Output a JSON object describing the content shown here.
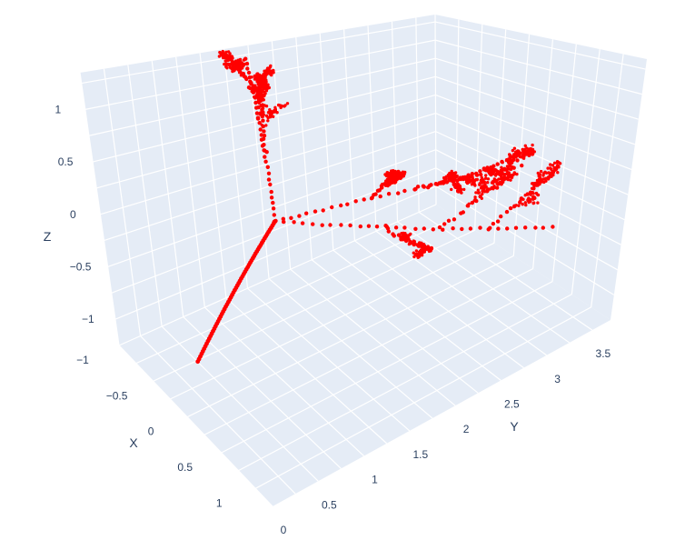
{
  "chart_data": {
    "type": "scatter3d",
    "title": "",
    "axes": {
      "x": {
        "label": "X",
        "range": [
          -1,
          1.25
        ],
        "ticks": [
          -1,
          -0.5,
          0,
          0.5,
          1
        ],
        "tick_labels": [
          "−1",
          "−0.5",
          "0",
          "0.5",
          "1"
        ]
      },
      "y": {
        "label": "Y",
        "range": [
          0,
          3.7
        ],
        "ticks": [
          0,
          0.5,
          1,
          1.5,
          2,
          2.5,
          3,
          3.5
        ],
        "tick_labels": [
          "0",
          "0.5",
          "1",
          "1.5",
          "2",
          "2.5",
          "3",
          "3.5"
        ]
      },
      "z": {
        "label": "Z",
        "range": [
          -1.25,
          1.35
        ],
        "ticks": [
          -1,
          -0.5,
          0,
          0.5,
          1
        ],
        "tick_labels": [
          "−1",
          "−0.5",
          "0",
          "0.5",
          "1"
        ]
      }
    },
    "grid": true,
    "background_color": "#e5ecf6",
    "grid_color": "#ffffff",
    "series": [
      {
        "marker_color": "#ff0000",
        "trunk": {
          "from": [
            0.2,
            0.0,
            -0.75
          ],
          "to": [
            0.0,
            1.05,
            0.0
          ]
        },
        "branches": [
          {
            "from": [
              0.0,
              1.05,
              0.0
            ],
            "to": [
              -0.6,
              1.35,
              1.3
            ]
          },
          {
            "from": [
              0.0,
              1.05,
              0.0
            ],
            "to": [
              0.6,
              3.15,
              0.2
            ]
          },
          {
            "from": [
              0.0,
              1.05,
              0.0
            ],
            "to": [
              0.6,
              3.55,
              -0.55
            ]
          }
        ]
      }
    ]
  }
}
